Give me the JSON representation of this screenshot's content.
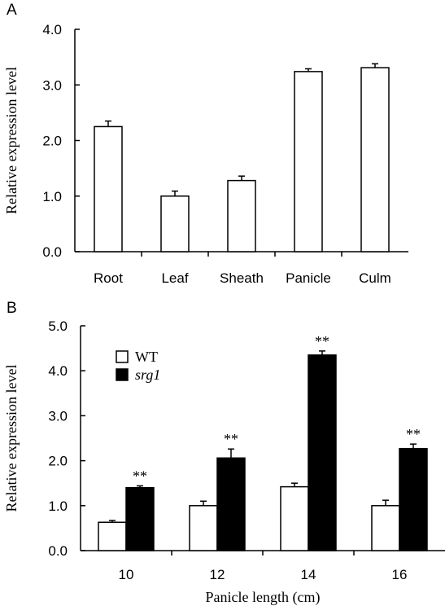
{
  "chart_data": [
    {
      "panel": "A",
      "type": "bar",
      "categories": [
        "Root",
        "Leaf",
        "Sheath",
        "Panicle",
        "Culm"
      ],
      "series": [
        {
          "values": [
            2.25,
            1.0,
            1.28,
            3.24,
            3.31
          ],
          "errors": [
            0.1,
            0.09,
            0.08,
            0.05,
            0.07
          ],
          "color": "#ffffff"
        }
      ],
      "ylabel": "Relative expression level",
      "xlabel": "",
      "ylim": [
        0,
        4
      ],
      "yticks": [
        "0.0",
        "1.0",
        "2.0",
        "3.0",
        "4.0"
      ]
    },
    {
      "panel": "B",
      "type": "bar",
      "categories": [
        "10",
        "12",
        "14",
        "16"
      ],
      "series": [
        {
          "name": "WT",
          "values": [
            0.63,
            1.0,
            1.42,
            1.0
          ],
          "errors": [
            0.04,
            0.1,
            0.08,
            0.12
          ],
          "color": "#ffffff"
        },
        {
          "name": "srg1",
          "values": [
            1.4,
            2.06,
            4.35,
            2.27
          ],
          "errors": [
            0.04,
            0.2,
            0.09,
            0.1
          ],
          "color": "#000000"
        }
      ],
      "significance": [
        "**",
        "**",
        "**",
        "**"
      ],
      "ylabel": "Relative expression level",
      "xlabel": "Panicle length (cm)",
      "ylim": [
        0,
        5
      ],
      "yticks": [
        "0.0",
        "1.0",
        "2.0",
        "3.0",
        "4.0",
        "5.0"
      ],
      "legend_position": "top-left"
    }
  ]
}
